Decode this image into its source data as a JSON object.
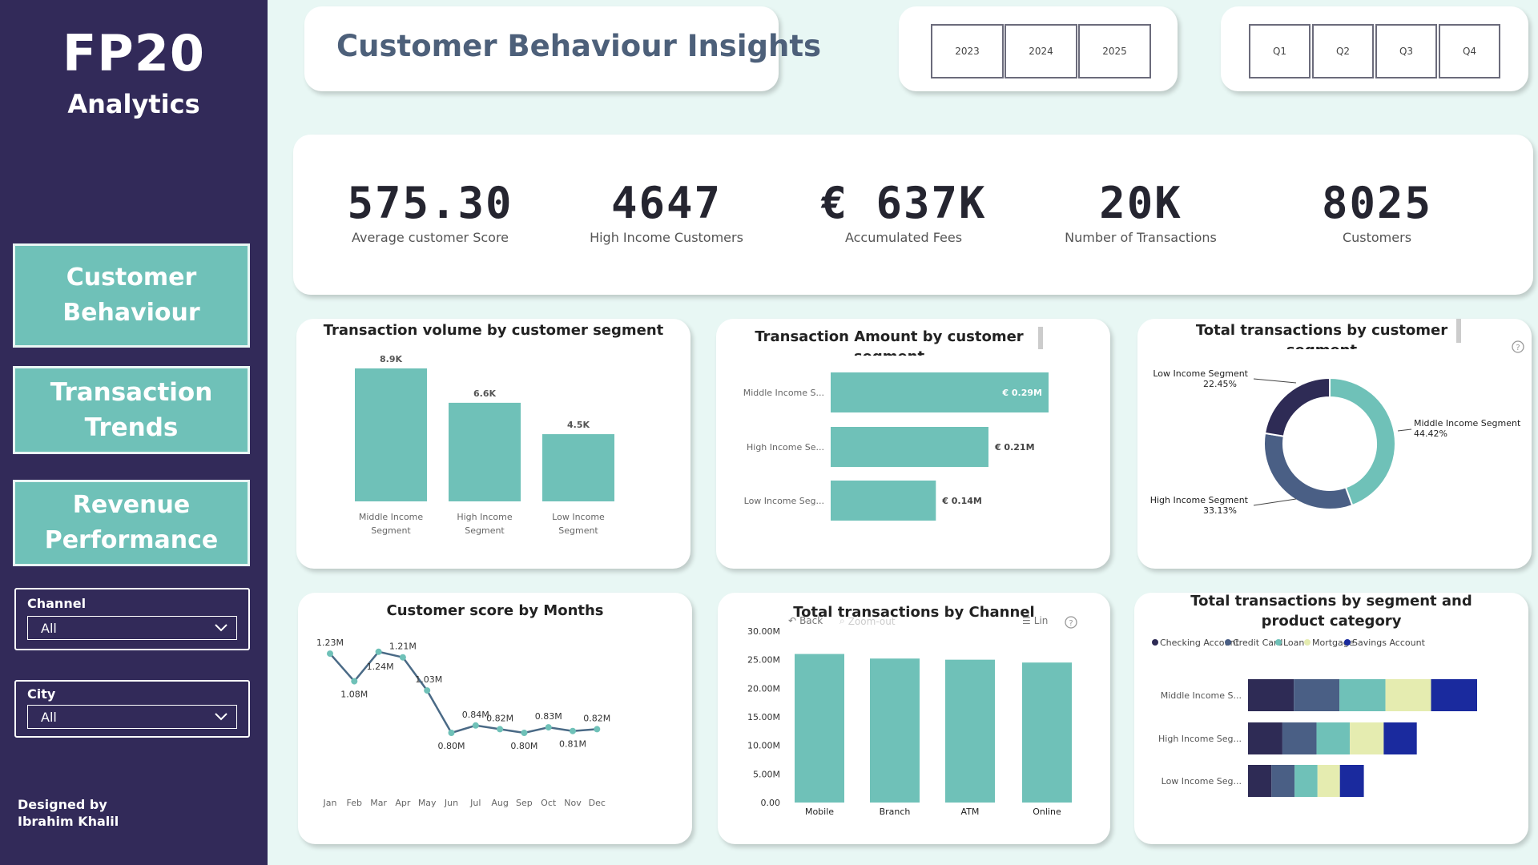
{
  "brand": {
    "line1": "FP20",
    "line2": "Analytics"
  },
  "nav": {
    "customer_behaviour": "Customer Behaviour",
    "transaction_trends": "Transaction Trends",
    "revenue_performance": "Revenue Performance"
  },
  "slicers": {
    "channel": {
      "label": "Channel",
      "value": "All"
    },
    "city": {
      "label": "City",
      "value": "All"
    }
  },
  "credit": {
    "line1": "Designed by",
    "line2": "Ibrahim Khalil"
  },
  "header": {
    "title": "Customer Behaviour Insights"
  },
  "year_filter": [
    "2023",
    "2024",
    "2025"
  ],
  "quarter_filter": [
    "Q1",
    "Q2",
    "Q3",
    "Q4"
  ],
  "kpis": [
    {
      "value": "575.30",
      "label": "Average customer Score"
    },
    {
      "value": "4647",
      "label": "High Income Customers"
    },
    {
      "value": "€ 637K",
      "label": "Accumulated Fees"
    },
    {
      "value": "20K",
      "label": "Number of Transactions"
    },
    {
      "value": "8025",
      "label": "Customers"
    }
  ],
  "colors": {
    "teal": "#6fc1b8",
    "navy": "#2e2b55",
    "slate": "#4a5f85",
    "lime": "#e5ecb0",
    "blue": "#1a2a9e",
    "sidebar": "#322a59"
  },
  "chart_data": [
    {
      "id": "volume",
      "type": "bar",
      "title": "Transaction volume by customer segment",
      "categories": [
        "Middle Income Segment",
        "High Income Segment",
        "Low Income Segment"
      ],
      "cat_lines": [
        [
          "Middle Income",
          "Segment"
        ],
        [
          "High Income",
          "Segment"
        ],
        [
          "Low Income",
          "Segment"
        ]
      ],
      "values": [
        8900,
        6600,
        4500
      ],
      "labels": [
        "8.9K",
        "6.6K",
        "4.5K"
      ]
    },
    {
      "id": "amount",
      "type": "bar",
      "orientation": "horizontal",
      "title": "Transaction Amount by customer segment",
      "title_visible": "Transaction Amount by customer",
      "title_clipped": "segment",
      "categories": [
        "Middle Income S...",
        "High Income Se...",
        "Low Income Seg..."
      ],
      "values": [
        0.29,
        0.21,
        0.14
      ],
      "labels": [
        "€ 0.29M",
        "€ 0.21M",
        "€ 0.14M"
      ]
    },
    {
      "id": "donut",
      "type": "pie",
      "title": "Total transactions by customer segment",
      "title_visible": "Total transactions by customer",
      "title_clipped": "segment",
      "slices": [
        {
          "name": "Middle Income Segment",
          "value": 44.42,
          "label": "44.42%",
          "color": "#6fc1b8"
        },
        {
          "name": "High Income Segment",
          "value": 33.13,
          "label": "33.13%",
          "color": "#4a5f85"
        },
        {
          "name": "Low Income Segment",
          "value": 22.45,
          "label": "22.45%",
          "color": "#2e2b55"
        }
      ]
    },
    {
      "id": "score",
      "type": "line",
      "title": "Customer score by Months",
      "x": [
        "Jan",
        "Feb",
        "Mar",
        "Apr",
        "May",
        "Jun",
        "Jul",
        "Aug",
        "Sep",
        "Oct",
        "Nov",
        "Dec"
      ],
      "values": [
        1.23,
        1.08,
        1.24,
        1.21,
        1.03,
        0.8,
        0.84,
        0.82,
        0.8,
        0.83,
        0.81,
        0.82
      ],
      "labels": [
        "1.23M",
        "1.08M",
        "1.24M",
        "1.21M",
        "1.03M",
        "0.80M",
        "0.84M",
        "0.82M",
        "0.80M",
        "0.83M",
        "0.81M",
        "0.82M"
      ],
      "ylim": [
        0.7,
        1.3
      ]
    },
    {
      "id": "channel",
      "type": "bar",
      "title": "Total transactions by Channel",
      "categories": [
        "Mobile",
        "Branch",
        "ATM",
        "Online"
      ],
      "values": [
        26.0,
        25.2,
        25.0,
        24.5
      ],
      "ylim": [
        0,
        30
      ],
      "yticks": [
        "0.00",
        "5.00M",
        "10.00M",
        "15.00M",
        "20.00M",
        "25.00M",
        "30.00M"
      ],
      "toolbar": {
        "back": "Back",
        "zoom_out": "Zoom-out",
        "lin": "Lin"
      }
    },
    {
      "id": "stacked",
      "type": "bar",
      "orientation": "horizontal",
      "stacked": true,
      "title": "Total transactions by segment and product category",
      "title_lines": [
        "Total transactions by segment and",
        "product category"
      ],
      "categories": [
        "Middle Income S...",
        "High Income Seg...",
        "Low Income Seg..."
      ],
      "series": [
        {
          "name": "Checking Account",
          "color": "#2e2b55",
          "values": [
            1800,
            1350,
            920
          ]
        },
        {
          "name": "Credit Card",
          "color": "#4a5f85",
          "values": [
            1790,
            1340,
            910
          ]
        },
        {
          "name": "Loan",
          "color": "#6fc1b8",
          "values": [
            1810,
            1310,
            900
          ]
        },
        {
          "name": "Mortgage",
          "color": "#e5ecb0",
          "values": [
            1790,
            1330,
            880
          ]
        },
        {
          "name": "Savings Account",
          "color": "#1a2a9e",
          "values": [
            1810,
            1300,
            940
          ]
        }
      ]
    }
  ]
}
